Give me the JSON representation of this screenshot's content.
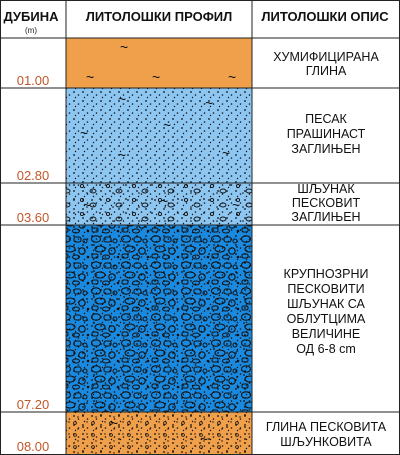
{
  "header": {
    "depth_title": "ДУБИНА",
    "depth_unit": "(m)",
    "profile_title": "ЛИТОЛОШКИ ПРОФИЛ",
    "description_title": "ЛИТОЛОШКИ ОПИС"
  },
  "layers": [
    {
      "depth": "01.00",
      "description": [
        "ХУМИФИЦИРАНА",
        "ГЛИНА"
      ],
      "fill": "#f0a04b",
      "pattern": "clay"
    },
    {
      "depth": "02.80",
      "description": [
        "ПЕСАК",
        "ПРАШИНАСТ",
        "ЗАГЛИЊЕН"
      ],
      "fill": "#8ec6f2",
      "pattern": "silty-clayey-sand"
    },
    {
      "depth": "03.60",
      "description": [
        "ШЉУНАК",
        "ПЕСКОВИТ",
        "ЗАГЛИЊЕН"
      ],
      "fill": "#8ec6f2",
      "pattern": "sandy-clayey-gravel"
    },
    {
      "depth": "07.20",
      "description": [
        "КРУПНОЗРНИ",
        "ПЕСКОВИТИ",
        "ШЉУНАК СА",
        "ОБЛУТЦИМА",
        "ВЕЛИЧИНЕ",
        "ОД 6-8 cm"
      ],
      "fill": "#1a8ae0",
      "pattern": "coarse-gravel-cobbles"
    },
    {
      "depth": "08.00",
      "description": [
        "ГЛИНА ПЕСКОВИТА",
        "ШЉУНКОВИТА"
      ],
      "fill": "#f0a04b",
      "pattern": "sandy-gravelly-clay"
    }
  ],
  "colors": {
    "depth_text": "#c0582a",
    "clay": "#f0a04b",
    "sand": "#8ec6f2",
    "coarse_gravel": "#1a8ae0",
    "lines": "#222222"
  }
}
